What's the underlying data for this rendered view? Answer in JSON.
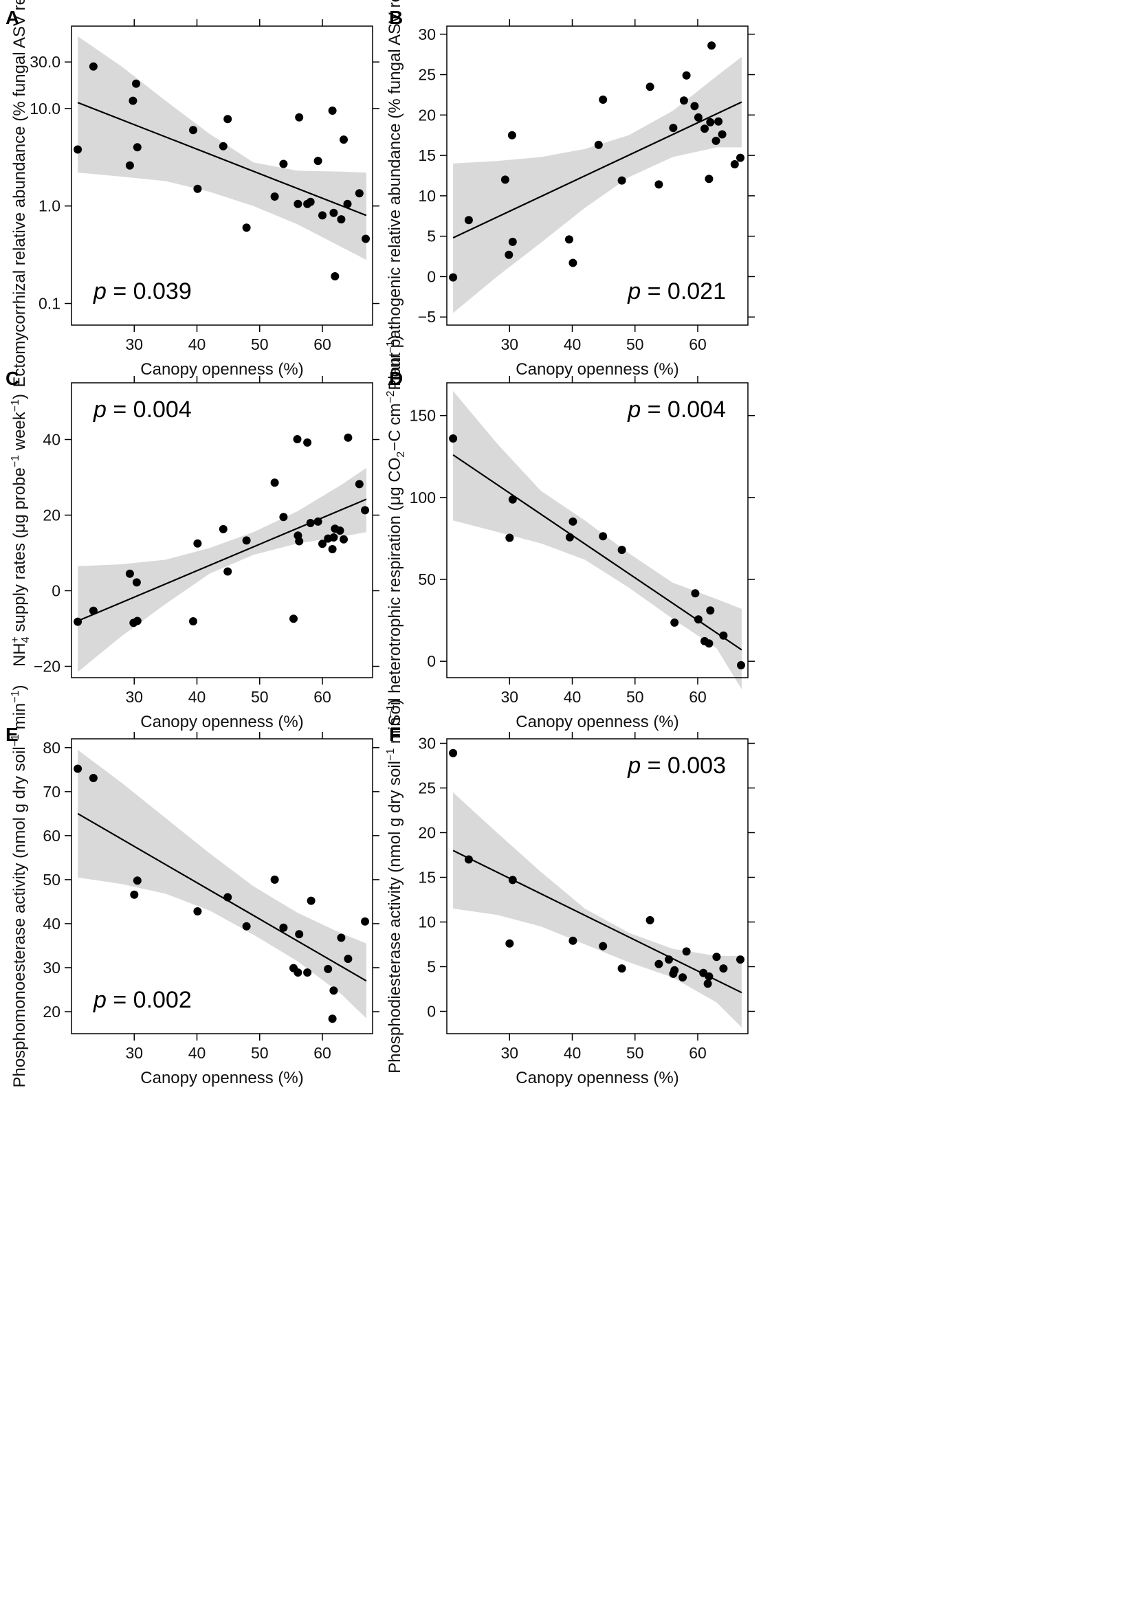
{
  "chart_data": [
    {
      "panel": "A",
      "type": "scatter",
      "title": "",
      "xlabel": "Canopy openness (%)",
      "ylabel": "Ectomycorrhizal relative abundance (% fungal ASV reads)",
      "yscale": "log",
      "xlim": [
        20,
        68
      ],
      "ylim": [
        0.06,
        70
      ],
      "xticks": [
        30,
        40,
        50,
        60
      ],
      "yticks": [
        0.1,
        1.0,
        10.0,
        30.0
      ],
      "ytick_labels": [
        "0.1",
        "1.0",
        "10.0",
        "30.0"
      ],
      "p_label": "p",
      "p_value": " = 0.039",
      "p_position": "bottom-left",
      "fit_line": [
        [
          21.0,
          11.5
        ],
        [
          67.0,
          0.8
        ]
      ],
      "ci_band": {
        "x": [
          21,
          28,
          35,
          42,
          49,
          56,
          63,
          67
        ],
        "lower": [
          2.2,
          2.0,
          1.8,
          1.4,
          1.0,
          0.65,
          0.38,
          0.28
        ],
        "upper": [
          55,
          27,
          12,
          5.5,
          2.8,
          2.3,
          2.25,
          2.2
        ]
      },
      "series": [
        {
          "name": "sites",
          "x": [
            21.0,
            23.5,
            29.3,
            29.8,
            30.3,
            30.5,
            39.4,
            40.1,
            44.2,
            44.9,
            47.9,
            52.4,
            53.8,
            56.1,
            56.3,
            57.6,
            58.1,
            59.3,
            60.0,
            61.6,
            61.8,
            62.0,
            63.0,
            63.4,
            64.0,
            65.9,
            66.9
          ],
          "y": [
            3.8,
            27.0,
            2.6,
            12.0,
            18.0,
            4.0,
            6.0,
            1.5,
            4.1,
            7.8,
            0.6,
            1.25,
            2.7,
            1.05,
            8.1,
            1.05,
            1.1,
            2.9,
            0.8,
            9.5,
            0.85,
            0.19,
            0.73,
            4.8,
            1.05,
            1.35,
            0.46
          ]
        }
      ]
    },
    {
      "panel": "B",
      "type": "scatter",
      "title": "",
      "xlabel": "Canopy openness (%)",
      "ylabel": "Plant pathogenic relative abundance (% fungal ASV reads)",
      "yscale": "linear",
      "xlim": [
        20,
        68
      ],
      "ylim": [
        -6,
        31
      ],
      "xticks": [
        30,
        40,
        50,
        60
      ],
      "yticks": [
        -5,
        0,
        5,
        10,
        15,
        20,
        25,
        30
      ],
      "ytick_labels": [
        "−5",
        "0",
        "5",
        "10",
        "15",
        "20",
        "25",
        "30"
      ],
      "p_label": "p",
      "p_value": " = 0.021",
      "p_position": "bottom-right",
      "fit_line": [
        [
          21.0,
          4.8
        ],
        [
          67.0,
          21.6
        ]
      ],
      "ci_band": {
        "x": [
          21,
          28,
          35,
          42,
          49,
          56,
          63,
          67
        ],
        "lower": [
          -4.5,
          0.0,
          4.2,
          8.5,
          12.3,
          14.8,
          16.0,
          16.0
        ],
        "upper": [
          14.0,
          14.3,
          14.8,
          15.8,
          17.5,
          20.5,
          24.8,
          27.2
        ]
      },
      "series": [
        {
          "name": "sites",
          "x": [
            21.0,
            23.5,
            29.3,
            29.9,
            30.4,
            30.5,
            39.5,
            40.1,
            44.2,
            44.9,
            47.9,
            52.4,
            53.8,
            56.1,
            57.8,
            58.2,
            59.5,
            60.1,
            61.1,
            61.8,
            62.0,
            62.9,
            63.3,
            63.9,
            65.9,
            66.8,
            62.2
          ],
          "y": [
            -0.1,
            7.0,
            12.0,
            2.7,
            17.5,
            4.3,
            4.6,
            1.7,
            16.3,
            21.9,
            11.9,
            23.5,
            11.4,
            18.4,
            21.8,
            24.9,
            21.1,
            19.7,
            18.3,
            12.1,
            19.1,
            16.8,
            19.2,
            17.6,
            13.9,
            14.7,
            28.6
          ]
        }
      ]
    },
    {
      "panel": "C",
      "type": "scatter",
      "title": "",
      "xlabel": "Canopy openness (%)",
      "ylabel_parts": [
        "NH",
        "4",
        "+",
        " supply rates (μg probe",
        "−1",
        " week",
        "−1",
        ")"
      ],
      "yscale": "linear",
      "xlim": [
        20,
        68
      ],
      "ylim": [
        -23,
        55
      ],
      "xticks": [
        30,
        40,
        50,
        60
      ],
      "yticks": [
        -20,
        0,
        20,
        40
      ],
      "ytick_labels": [
        "−20",
        "0",
        "20",
        "40"
      ],
      "p_label": "p",
      "p_value": " = 0.004",
      "p_position": "top-left",
      "fit_line": [
        [
          21.0,
          -8.0
        ],
        [
          67.0,
          24.2
        ]
      ],
      "ci_band": {
        "x": [
          21,
          28,
          35,
          42,
          49,
          56,
          63,
          67
        ],
        "lower": [
          -21.5,
          -12.0,
          -3.5,
          4.5,
          9.5,
          12.5,
          14.3,
          15.5
        ],
        "upper": [
          6.5,
          7.0,
          8.2,
          11.3,
          15.5,
          21.0,
          28.0,
          32.5
        ]
      },
      "series": [
        {
          "name": "sites",
          "x": [
            21.0,
            23.5,
            29.3,
            29.9,
            30.4,
            30.5,
            39.4,
            40.1,
            44.2,
            44.9,
            47.9,
            52.4,
            53.8,
            55.4,
            56.0,
            56.1,
            56.3,
            57.6,
            58.1,
            59.3,
            60.0,
            60.9,
            61.6,
            61.8,
            62.0,
            62.8,
            63.4,
            64.1,
            65.9,
            66.8
          ],
          "y": [
            -8.2,
            -5.3,
            4.5,
            -8.5,
            2.2,
            -8.0,
            -8.1,
            12.5,
            16.3,
            5.1,
            13.3,
            28.6,
            19.5,
            -7.4,
            40.1,
            14.6,
            13.1,
            39.2,
            17.9,
            18.3,
            12.4,
            13.8,
            11.0,
            14.1,
            16.4,
            15.9,
            13.6,
            40.5,
            28.2,
            21.3
          ]
        }
      ]
    },
    {
      "panel": "D",
      "type": "scatter",
      "title": "",
      "xlabel": "Canopy openness (%)",
      "ylabel_parts": [
        "Soil heterotrophic respiration (μg CO",
        "2",
        "−C cm",
        "−2",
        " hour",
        "−1",
        ")"
      ],
      "yscale": "linear",
      "xlim": [
        20,
        68
      ],
      "ylim": [
        -10,
        170
      ],
      "xticks": [
        30,
        40,
        50,
        60
      ],
      "yticks": [
        0,
        50,
        100,
        150
      ],
      "ytick_labels": [
        "0",
        "50",
        "100",
        "150"
      ],
      "p_label": "p",
      "p_value": " = 0.004",
      "p_position": "top-right",
      "fit_line": [
        [
          21.0,
          126.0
        ],
        [
          67.0,
          7.0
        ]
      ],
      "ci_band": {
        "x": [
          21,
          28,
          35,
          42,
          49,
          56,
          63,
          67
        ],
        "lower": [
          86,
          79,
          72,
          62,
          45,
          26,
          8,
          -17
        ],
        "upper": [
          165,
          133,
          104,
          86,
          66,
          48,
          38,
          32
        ]
      },
      "series": [
        {
          "name": "sites",
          "x": [
            21.0,
            30.0,
            30.5,
            39.6,
            40.1,
            44.9,
            47.9,
            56.3,
            59.6,
            60.1,
            61.1,
            61.8,
            62.0,
            64.1,
            66.9
          ],
          "y": [
            136.0,
            75.4,
            98.8,
            75.7,
            85.3,
            76.3,
            68.0,
            23.6,
            41.5,
            25.6,
            12.3,
            10.9,
            31.0,
            15.7,
            -2.4
          ]
        }
      ]
    },
    {
      "panel": "E",
      "type": "scatter",
      "title": "",
      "xlabel": "Canopy openness (%)",
      "ylabel_parts": [
        "Phosphomonoesterase activity (nmol g dry soil",
        "−1",
        " min",
        "−1",
        ")"
      ],
      "yscale": "linear",
      "xlim": [
        20,
        68
      ],
      "ylim": [
        15,
        82
      ],
      "xticks": [
        30,
        40,
        50,
        60
      ],
      "yticks": [
        20,
        30,
        40,
        50,
        60,
        70,
        80
      ],
      "ytick_labels": [
        "20",
        "30",
        "40",
        "50",
        "60",
        "70",
        "80"
      ],
      "p_label": "p",
      "p_value": " = 0.002",
      "p_position": "bottom-left",
      "fit_line": [
        [
          21.0,
          65.0
        ],
        [
          67.0,
          27.0
        ]
      ],
      "ci_band": {
        "x": [
          21,
          28,
          35,
          42,
          49,
          56,
          63,
          67
        ],
        "lower": [
          50.5,
          49.0,
          46.8,
          43.0,
          37.5,
          31.5,
          24.0,
          18.5
        ],
        "upper": [
          79.5,
          72.0,
          64.0,
          56.0,
          48.5,
          42.5,
          37.8,
          35.5
        ]
      },
      "series": [
        {
          "name": "sites",
          "x": [
            21.0,
            23.5,
            30.0,
            30.5,
            40.1,
            44.9,
            47.9,
            52.4,
            53.8,
            55.4,
            56.1,
            56.3,
            57.6,
            58.2,
            60.9,
            61.6,
            61.8,
            63.0,
            64.1,
            66.8
          ],
          "y": [
            75.2,
            73.1,
            46.6,
            49.8,
            42.8,
            46.0,
            39.4,
            50.0,
            39.1,
            29.9,
            28.9,
            37.6,
            28.9,
            45.2,
            29.7,
            18.4,
            24.8,
            36.8,
            32.0,
            40.5
          ]
        }
      ]
    },
    {
      "panel": "F",
      "type": "scatter",
      "title": "",
      "xlabel": "Canopy openness (%)",
      "ylabel_parts": [
        "Phosphodiesterase activity (nmol g dry soil",
        "−1",
        " min",
        "−1",
        ")"
      ],
      "yscale": "linear",
      "xlim": [
        20,
        68
      ],
      "ylim": [
        -2.5,
        30.5
      ],
      "xticks": [
        30,
        40,
        50,
        60
      ],
      "yticks": [
        0,
        5,
        10,
        15,
        20,
        25,
        30
      ],
      "ytick_labels": [
        "0",
        "5",
        "10",
        "15",
        "20",
        "25",
        "30"
      ],
      "p_label": "p",
      "p_value": " = 0.003",
      "p_position": "top-right",
      "fit_line": [
        [
          21.0,
          18.0
        ],
        [
          67.0,
          2.1
        ]
      ],
      "ci_band": {
        "x": [
          21,
          28,
          35,
          42,
          49,
          56,
          63,
          67
        ],
        "lower": [
          11.5,
          10.8,
          9.5,
          7.5,
          5.5,
          3.8,
          1.0,
          -1.8
        ],
        "upper": [
          24.5,
          20.0,
          15.6,
          11.5,
          8.8,
          7.0,
          6.2,
          6.2
        ]
      },
      "series": [
        {
          "name": "sites",
          "x": [
            21.0,
            23.5,
            30.0,
            30.5,
            40.1,
            44.9,
            47.9,
            52.4,
            53.8,
            55.4,
            56.1,
            56.3,
            57.6,
            58.2,
            60.9,
            61.6,
            61.8,
            63.0,
            64.1,
            66.8
          ],
          "y": [
            28.9,
            17.0,
            7.6,
            14.7,
            7.9,
            7.3,
            4.8,
            10.2,
            5.3,
            5.8,
            4.2,
            4.6,
            3.8,
            6.7,
            4.3,
            3.1,
            3.9,
            6.1,
            4.8,
            5.8
          ]
        }
      ]
    }
  ]
}
